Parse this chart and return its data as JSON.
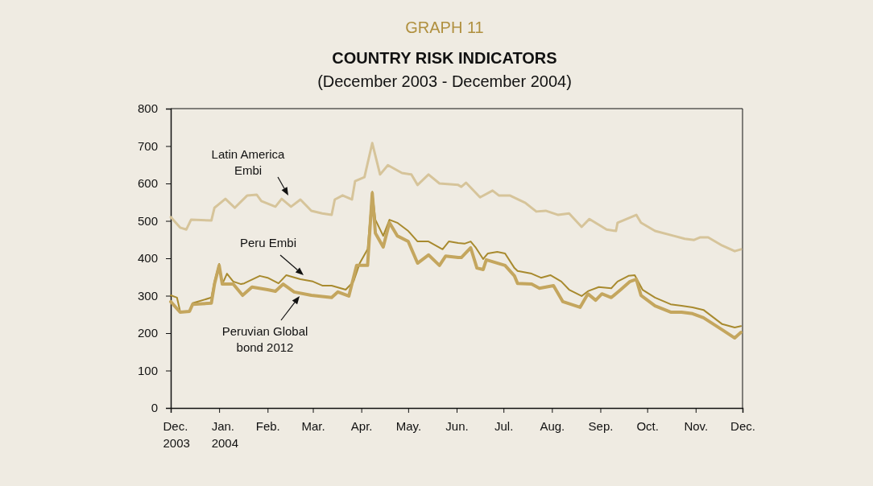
{
  "chart_data": {
    "type": "line",
    "title": "GRAPH 11",
    "subtitle": "COUNTRY RISK INDICATORS",
    "annotations": [
      "(December 2003 - December 2004)"
    ],
    "xlim": [
      "2003-12-01",
      "2004-12-01"
    ],
    "xticks": [
      {
        "value": "2003-12-01",
        "label": "Dec. 2003"
      },
      {
        "value": "2004-01-01",
        "label": "Jan. 2004"
      },
      {
        "value": "2004-02-01",
        "label": "Feb."
      },
      {
        "value": "2004-03-01",
        "label": "Mar."
      },
      {
        "value": "2004-04-01",
        "label": "Apr."
      },
      {
        "value": "2004-05-01",
        "label": "May."
      },
      {
        "value": "2004-06-01",
        "label": "Jun."
      },
      {
        "value": "2004-07-01",
        "label": "Jul."
      },
      {
        "value": "2004-08-01",
        "label": "Aug."
      },
      {
        "value": "2004-09-01",
        "label": "Sep."
      },
      {
        "value": "2004-10-01",
        "label": "Oct."
      },
      {
        "value": "2004-11-01",
        "label": "Nov."
      },
      {
        "value": "2004-12-01",
        "label": "Dec."
      }
    ],
    "ylim": [
      0,
      800
    ],
    "yticks": [
      0,
      100,
      200,
      300,
      400,
      500,
      600,
      700,
      800
    ],
    "grid": false,
    "series": [
      {
        "name": "Latin America Embi",
        "color": "#d6c49a",
        "x": [
          "2003-12-01",
          "2003-12-07",
          "2003-12-11",
          "2003-12-14",
          "2003-12-27",
          "2003-12-29",
          "2004-01-05",
          "2004-01-11",
          "2004-01-19",
          "2004-01-25",
          "2004-01-28",
          "2004-02-06",
          "2004-02-10",
          "2004-02-16",
          "2004-02-22",
          "2004-02-29",
          "2004-03-07",
          "2004-03-13",
          "2004-03-15",
          "2004-03-20",
          "2004-03-26",
          "2004-03-28",
          "2004-04-03",
          "2004-04-08",
          "2004-04-13",
          "2004-04-18",
          "2004-04-27",
          "2004-05-03",
          "2004-05-07",
          "2004-05-14",
          "2004-05-21",
          "2004-06-02",
          "2004-06-04",
          "2004-06-07",
          "2004-06-16",
          "2004-06-24",
          "2004-06-28",
          "2004-07-05",
          "2004-07-15",
          "2004-07-22",
          "2004-07-28",
          "2004-08-05",
          "2004-08-12",
          "2004-08-20",
          "2004-08-25",
          "2004-09-05",
          "2004-09-11",
          "2004-09-12",
          "2004-09-24",
          "2004-09-27",
          "2004-10-06",
          "2004-10-18",
          "2004-10-25",
          "2004-10-31",
          "2004-11-04",
          "2004-11-09",
          "2004-11-18",
          "2004-11-26",
          "2004-11-30"
        ],
        "values": [
          510,
          482,
          477,
          503,
          501,
          535,
          559,
          535,
          568,
          570,
          553,
          538,
          559,
          538,
          557,
          527,
          520,
          516,
          557,
          568,
          557,
          606,
          617,
          708,
          624,
          649,
          628,
          624,
          596,
          624,
          600,
          596,
          591,
          602,
          563,
          581,
          568,
          568,
          548,
          525,
          527,
          516,
          520,
          484,
          505,
          477,
          473,
          495,
          516,
          495,
          473,
          460,
          452,
          449,
          456,
          456,
          434,
          419,
          424
        ]
      },
      {
        "name": "Peru Embi",
        "color": "#a88a2e",
        "x": [
          "2003-12-01",
          "2003-12-05",
          "2003-12-07",
          "2003-12-13",
          "2003-12-15",
          "2003-12-27",
          "2003-12-29",
          "2004-01-01",
          "2004-01-03",
          "2004-01-06",
          "2004-01-10",
          "2004-01-15",
          "2004-01-17",
          "2004-01-27",
          "2004-02-01",
          "2004-02-08",
          "2004-02-13",
          "2004-02-22",
          "2004-03-01",
          "2004-03-07",
          "2004-03-13",
          "2004-03-22",
          "2004-03-27",
          "2004-03-31",
          "2004-04-05",
          "2004-04-08",
          "2004-04-10",
          "2004-04-15",
          "2004-04-19",
          "2004-04-24",
          "2004-05-01",
          "2004-05-07",
          "2004-05-14",
          "2004-05-23",
          "2004-05-27",
          "2004-06-02",
          "2004-06-06",
          "2004-06-10",
          "2004-06-13",
          "2004-06-18",
          "2004-06-21",
          "2004-06-27",
          "2004-07-02",
          "2004-07-08",
          "2004-07-10",
          "2004-07-19",
          "2004-07-25",
          "2004-07-31",
          "2004-08-07",
          "2004-08-12",
          "2004-08-20",
          "2004-08-24",
          "2004-08-31",
          "2004-09-08",
          "2004-09-12",
          "2004-09-19",
          "2004-09-23",
          "2004-09-28",
          "2004-10-06",
          "2004-10-16",
          "2004-10-23",
          "2004-10-30",
          "2004-11-06",
          "2004-11-18",
          "2004-11-26",
          "2004-11-30"
        ],
        "values": [
          301,
          295,
          258,
          258,
          280,
          295,
          338,
          385,
          331,
          359,
          338,
          331,
          333,
          353,
          348,
          333,
          355,
          344,
          338,
          327,
          327,
          316,
          338,
          387,
          424,
          578,
          503,
          460,
          503,
          495,
          473,
          445,
          445,
          424,
          445,
          441,
          439,
          445,
          430,
          398,
          413,
          417,
          413,
          374,
          366,
          359,
          348,
          355,
          338,
          316,
          299,
          312,
          323,
          320,
          338,
          353,
          355,
          316,
          295,
          277,
          273,
          269,
          262,
          224,
          215,
          219
        ]
      },
      {
        "name": "Peruvian Global bond 2012",
        "color": "#c4a65e",
        "x": [
          "2003-12-01",
          "2003-12-07",
          "2003-12-13",
          "2003-12-15",
          "2003-12-27",
          "2003-12-29",
          "2004-01-01",
          "2004-01-03",
          "2004-01-10",
          "2004-01-16",
          "2004-01-22",
          "2004-02-01",
          "2004-02-06",
          "2004-02-11",
          "2004-02-18",
          "2004-02-29",
          "2004-03-13",
          "2004-03-17",
          "2004-03-24",
          "2004-03-29",
          "2004-04-05",
          "2004-04-08",
          "2004-04-10",
          "2004-04-15",
          "2004-04-19",
          "2004-04-24",
          "2004-05-01",
          "2004-05-07",
          "2004-05-14",
          "2004-05-21",
          "2004-05-25",
          "2004-06-02",
          "2004-06-04",
          "2004-06-10",
          "2004-06-14",
          "2004-06-18",
          "2004-06-20",
          "2004-07-02",
          "2004-07-08",
          "2004-07-10",
          "2004-07-19",
          "2004-07-24",
          "2004-08-02",
          "2004-08-08",
          "2004-08-19",
          "2004-08-24",
          "2004-08-29",
          "2004-09-02",
          "2004-09-08",
          "2004-09-14",
          "2004-09-20",
          "2004-09-24",
          "2004-09-27",
          "2004-10-06",
          "2004-10-16",
          "2004-10-23",
          "2004-10-30",
          "2004-11-06",
          "2004-11-18",
          "2004-11-26",
          "2004-11-30"
        ],
        "values": [
          284,
          256,
          258,
          277,
          280,
          331,
          381,
          331,
          331,
          301,
          323,
          316,
          312,
          331,
          310,
          301,
          295,
          310,
          299,
          381,
          381,
          574,
          467,
          430,
          495,
          460,
          445,
          387,
          409,
          381,
          406,
          402,
          402,
          428,
          374,
          370,
          396,
          381,
          353,
          333,
          331,
          320,
          327,
          284,
          269,
          305,
          288,
          305,
          295,
          316,
          338,
          344,
          301,
          273,
          256,
          256,
          252,
          241,
          209,
          187,
          202
        ]
      }
    ]
  }
}
